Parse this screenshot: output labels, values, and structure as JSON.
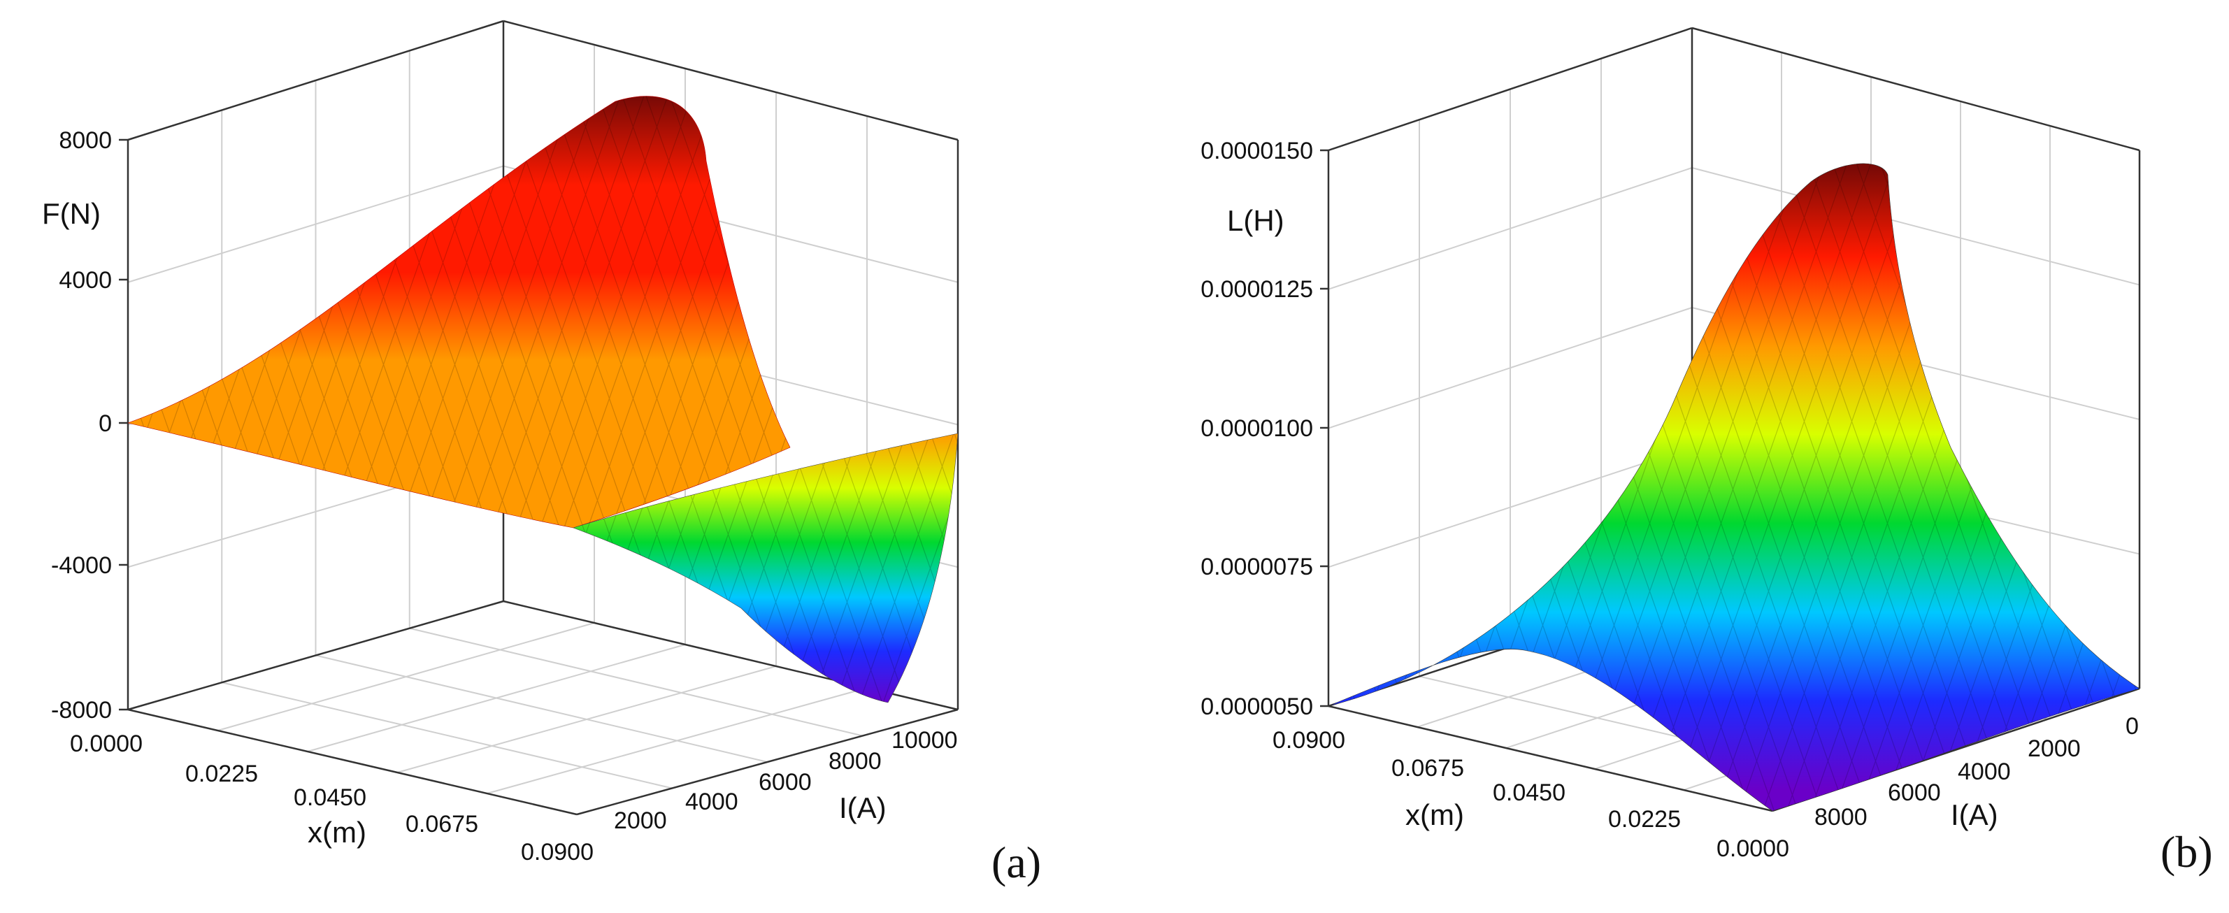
{
  "chart_data": [
    {
      "type": "surface3d",
      "panel_label": "(a)",
      "zlabel": "F(N)",
      "xlabel": "x(m)",
      "ylabel": "I(A)",
      "zlim": [
        -8000,
        8000
      ],
      "xlim": [
        0.0,
        0.09
      ],
      "ylim": [
        0,
        10000
      ],
      "z_ticks": [
        "8000",
        "4000",
        "0",
        "-4000",
        "-8000"
      ],
      "x_ticks": [
        "0.0000",
        "0.0225",
        "0.0450",
        "0.0675",
        "0.0900"
      ],
      "y_ticks": [
        "2000",
        "4000",
        "6000",
        "8000",
        "10000"
      ],
      "surface_samples": {
        "x": [
          0.0,
          0.0225,
          0.045,
          0.0675,
          0.09
        ],
        "I": [
          0,
          2500,
          5000,
          7500,
          10000
        ],
        "F": [
          [
            0,
            0,
            0,
            0,
            0
          ],
          [
            0,
            300,
            1000,
            1600,
            2000
          ],
          [
            0,
            1200,
            3800,
            6600,
            8500
          ],
          [
            0,
            400,
            1500,
            3000,
            4200
          ],
          [
            0,
            -900,
            -3200,
            -6000,
            -8000
          ]
        ]
      }
    },
    {
      "type": "surface3d",
      "panel_label": "(b)",
      "zlabel": "L(H)",
      "xlabel": "x(m)",
      "ylabel": "I(A)",
      "zlim": [
        5e-06,
        1.5e-05
      ],
      "xlim": [
        0.09,
        0.0
      ],
      "ylim": [
        10000,
        0
      ],
      "z_ticks": [
        "0.0000150",
        "0.0000125",
        "0.0000100",
        "0.0000075",
        "0.0000050"
      ],
      "x_ticks": [
        "0.0900",
        "0.0675",
        "0.0450",
        "0.0225",
        "0.0000"
      ],
      "y_ticks": [
        "8000",
        "6000",
        "4000",
        "2000",
        "0"
      ],
      "surface_samples": {
        "x": [
          0.09,
          0.0675,
          0.045,
          0.0225,
          0.0
        ],
        "I": [
          10000,
          7500,
          5000,
          2500,
          0
        ],
        "L": [
          [
            5e-06,
            5.2e-06,
            5.5e-06,
            5.7e-06,
            5.8e-06
          ],
          [
            5.5e-06,
            6.6e-06,
            7.8e-06,
            8.8e-06,
            9.5e-06
          ],
          [
            5.8e-06,
            8.5e-06,
            1.1e-05,
            1.28e-05,
            1.38e-05
          ],
          [
            5.5e-06,
            7e-06,
            9e-06,
            1.05e-05,
            1.12e-05
          ],
          [
            5e-06,
            5.2e-06,
            5.3e-06,
            5.4e-06,
            5.5e-06
          ]
        ]
      }
    }
  ],
  "colors": {
    "colormap": [
      "#6a00c8",
      "#1d2bff",
      "#00c8ff",
      "#00d830",
      "#d8ff00",
      "#ff9900",
      "#ff1a00",
      "#7a0a06"
    ],
    "grid": "#cfcfcf",
    "axis": "#000000"
  }
}
